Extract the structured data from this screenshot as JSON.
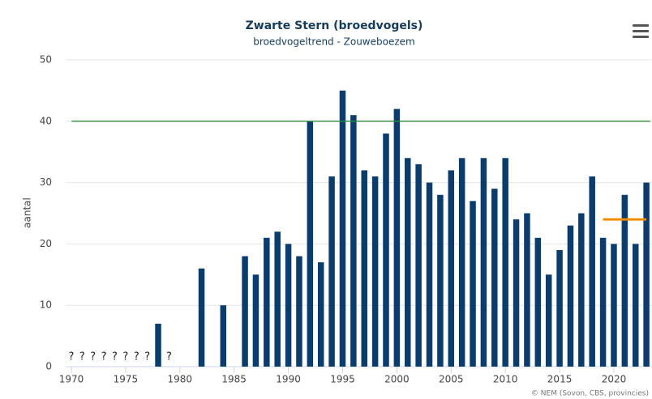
{
  "chart_data": {
    "type": "bar",
    "title": "Zwarte Stern (broedvogels)",
    "subtitle": "broedvogeltrend - Zouweboezem",
    "y_label": "aantal",
    "credits": "© NEM (Sovon, CBS, provincies)",
    "color": "#0b3c6e",
    "x": [
      1970,
      1971,
      1972,
      1973,
      1974,
      1975,
      1976,
      1977,
      1978,
      1979,
      1980,
      1981,
      1982,
      1983,
      1984,
      1985,
      1986,
      1987,
      1988,
      1989,
      1990,
      1991,
      1992,
      1993,
      1994,
      1995,
      1996,
      1997,
      1998,
      1999,
      2000,
      2001,
      2002,
      2003,
      2004,
      2005,
      2006,
      2007,
      2008,
      2009,
      2010,
      2011,
      2012,
      2013,
      2014,
      2015,
      2016,
      2017,
      2018,
      2019,
      2020,
      2021,
      2022,
      2023
    ],
    "values": [
      null,
      null,
      null,
      null,
      null,
      null,
      null,
      null,
      7,
      null,
      null,
      null,
      16,
      null,
      10,
      null,
      18,
      15,
      21,
      22,
      20,
      18,
      40,
      17,
      31,
      45,
      41,
      32,
      31,
      38,
      42,
      34,
      33,
      30,
      28,
      32,
      34,
      27,
      34,
      29,
      34,
      24,
      25,
      21,
      15,
      19,
      23,
      25,
      31,
      21,
      20,
      28,
      20,
      30
    ],
    "value_labels": [
      "?",
      "?",
      "?",
      "?",
      "?",
      "?",
      "?",
      "?",
      null,
      "?",
      null,
      null,
      null,
      null,
      null,
      null,
      null,
      null,
      null,
      null,
      null,
      null,
      null,
      null,
      null,
      null,
      null,
      null,
      null,
      null,
      null,
      null,
      null,
      null,
      null,
      null,
      null,
      null,
      null,
      null,
      null,
      null,
      null,
      null,
      null,
      null,
      null,
      null,
      null,
      null,
      null,
      null,
      null,
      null
    ],
    "xlim": [
      1969.5,
      2023.5
    ],
    "xticks": [
      1970,
      1975,
      1980,
      1985,
      1990,
      1995,
      2000,
      2005,
      2010,
      2015,
      2020
    ],
    "ylim": [
      0,
      50
    ],
    "yticks": [
      0,
      10,
      20,
      30,
      40,
      50
    ],
    "grid": true,
    "reference_line": {
      "value": 40,
      "color": "#2e8b3e"
    },
    "mean_segment": {
      "x": [
        2019,
        2023
      ],
      "value": 24,
      "color": "#f08c00"
    }
  }
}
